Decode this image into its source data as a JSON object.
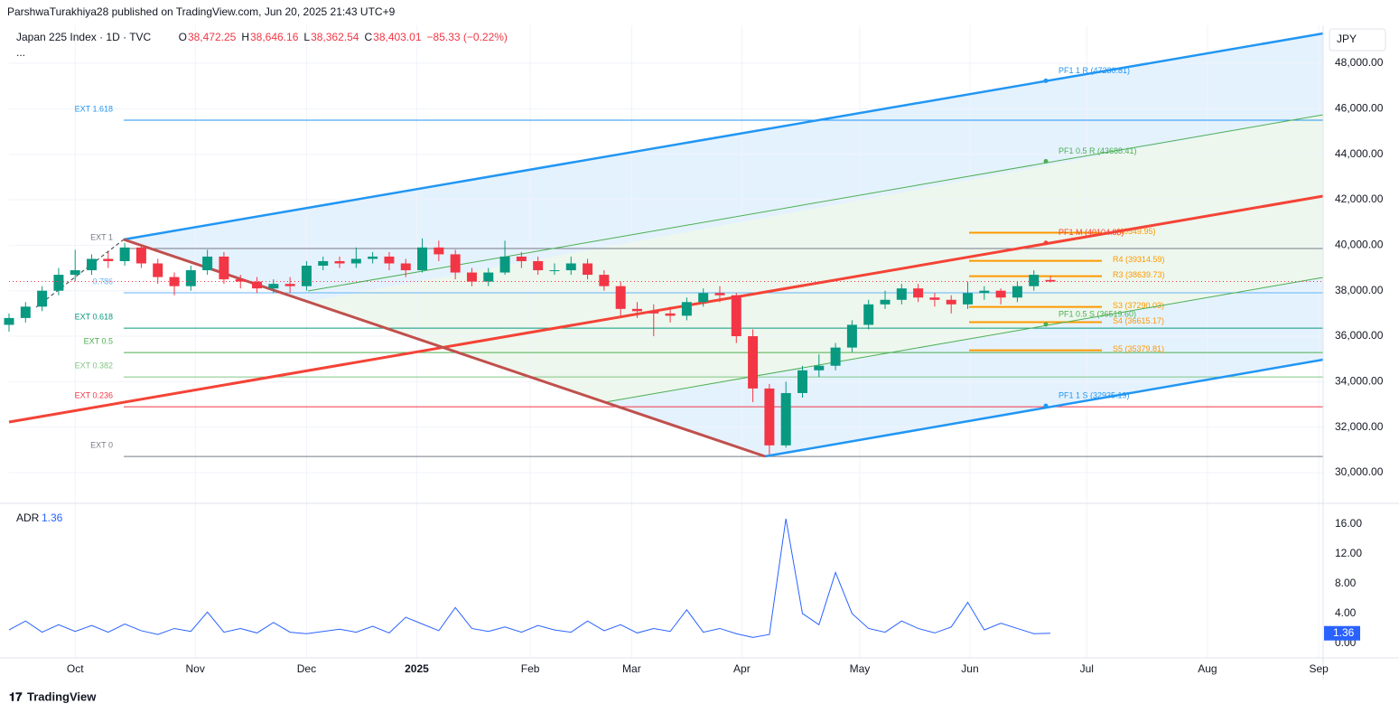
{
  "header": {
    "publisher": "ParshwaTurakhiya28 published on TradingView.com, Jun 20, 2025 21:43 UTC+9",
    "brand": "TradingView"
  },
  "chart_data": [
    {
      "type": "candlestick",
      "title": "Japan 225 Index · 1D · TVC",
      "menu": "...",
      "currency": "JPY",
      "ohlc": [
        {
          "key": "O",
          "value": "38,472.25"
        },
        {
          "key": "H",
          "value": "38,646.16"
        },
        {
          "key": "L",
          "value": "38,362.54"
        },
        {
          "key": "C",
          "value": "38,403.01"
        }
      ],
      "change": "−85.33 (−0.22%)",
      "x": [
        0,
        3,
        6,
        9,
        12,
        15,
        18,
        21,
        24,
        27,
        30,
        33,
        36,
        39,
        42,
        45,
        48,
        51,
        54,
        57,
        60,
        63,
        66,
        69,
        72,
        75,
        78,
        81,
        84,
        87,
        90,
        93,
        96,
        99,
        102,
        105,
        108,
        111,
        114,
        117,
        120,
        123,
        126,
        129,
        132,
        135,
        138,
        141,
        144,
        147,
        150,
        153,
        156,
        159,
        162,
        165,
        168,
        171,
        174,
        177,
        180,
        183,
        186,
        189
      ],
      "open": [
        36500,
        36800,
        37300,
        38000,
        38700,
        38900,
        39400,
        39300,
        39900,
        39200,
        38600,
        38200,
        38900,
        39500,
        38500,
        38400,
        38100,
        38300,
        38200,
        39100,
        39300,
        39200,
        39400,
        39500,
        39200,
        38900,
        39900,
        39600,
        38800,
        38400,
        38800,
        39500,
        39300,
        38900,
        38900,
        39200,
        38700,
        38200,
        37200,
        37100,
        37000,
        36900,
        37500,
        37900,
        37800,
        36000,
        33700,
        31200,
        33500,
        34500,
        34700,
        35500,
        36500,
        37400,
        37600,
        38100,
        37700,
        37600,
        37400,
        37900,
        38000,
        37700,
        38200,
        38472.25
      ],
      "high": [
        37000,
        37500,
        38200,
        39000,
        39800,
        39600,
        39700,
        40100,
        40000,
        39400,
        38800,
        39100,
        39800,
        39700,
        38700,
        38600,
        38500,
        38600,
        39300,
        39500,
        39500,
        39900,
        39700,
        39700,
        39400,
        40300,
        40200,
        39800,
        39000,
        39000,
        40200,
        39700,
        39500,
        39200,
        39500,
        39400,
        38900,
        38400,
        37500,
        37400,
        37300,
        37700,
        38100,
        38200,
        37900,
        36300,
        33900,
        34000,
        34700,
        35200,
        35700,
        36700,
        37600,
        38000,
        38300,
        38300,
        37900,
        37800,
        38400,
        38200,
        38100,
        38400,
        38900,
        38646.16
      ],
      "low": [
        36200,
        36600,
        37100,
        37800,
        38400,
        38700,
        39000,
        39100,
        39000,
        38300,
        37800,
        38000,
        38700,
        38300,
        38100,
        37900,
        37900,
        37900,
        38000,
        38900,
        39000,
        39000,
        39200,
        38900,
        38600,
        38800,
        39300,
        38500,
        38200,
        38200,
        38700,
        39000,
        38700,
        38700,
        38700,
        38500,
        38000,
        36900,
        36800,
        36000,
        36600,
        36700,
        37300,
        37500,
        35700,
        33100,
        30800,
        31100,
        33300,
        34200,
        34500,
        35300,
        36300,
        37200,
        37400,
        37500,
        37300,
        37000,
        37200,
        37600,
        37400,
        37500,
        38000,
        38362.54
      ],
      "close": [
        36800,
        37300,
        38000,
        38700,
        38900,
        39400,
        39300,
        39900,
        39200,
        38600,
        38200,
        38900,
        39500,
        38500,
        38400,
        38100,
        38300,
        38200,
        39100,
        39300,
        39200,
        39400,
        39500,
        39200,
        38900,
        39900,
        39600,
        38800,
        38400,
        38800,
        39500,
        39300,
        38900,
        38900,
        39200,
        38700,
        38200,
        37200,
        37100,
        37000,
        36900,
        37500,
        37900,
        37800,
        36000,
        33700,
        31200,
        33500,
        34500,
        34700,
        35500,
        36500,
        37400,
        37600,
        38100,
        37700,
        37600,
        37400,
        37900,
        38000,
        37700,
        38200,
        38700,
        38403.01
      ],
      "up_color": "#089981",
      "down_color": "#f23645",
      "xlim": [
        0,
        238.5
      ],
      "xticks": [
        {
          "value": 12,
          "label": "Oct"
        },
        {
          "value": 33.8,
          "label": "Nov"
        },
        {
          "value": 54,
          "label": "Dec"
        },
        {
          "value": 74,
          "label": "2025"
        },
        {
          "value": 94.6,
          "label": "Feb"
        },
        {
          "value": 113,
          "label": "Mar"
        },
        {
          "value": 133,
          "label": "Apr"
        },
        {
          "value": 154.4,
          "label": "May"
        },
        {
          "value": 174.4,
          "label": "Jun"
        },
        {
          "value": 195.6,
          "label": "Jul"
        },
        {
          "value": 217.5,
          "label": "Aug"
        },
        {
          "value": 237.7,
          "label": "Sep"
        }
      ],
      "ylim": [
        28730,
        49590
      ],
      "yticks": [
        {
          "value": 30000,
          "label": "30,000.00"
        },
        {
          "value": 32000,
          "label": "32,000.00"
        },
        {
          "value": 34000,
          "label": "34,000.00"
        },
        {
          "value": 36000,
          "label": "36,000.00"
        },
        {
          "value": 38000,
          "label": "38,000.00"
        },
        {
          "value": 40000,
          "label": "40,000.00"
        },
        {
          "value": 42000,
          "label": "42,000.00"
        },
        {
          "value": 44000,
          "label": "44,000.00"
        },
        {
          "value": 46000,
          "label": "46,000.00"
        },
        {
          "value": 48000,
          "label": "48,000.00"
        }
      ],
      "levels": [
        {
          "label": "EXT 1.618",
          "value": 45496,
          "color": "#2196f3"
        },
        {
          "label": "EXT 1",
          "value": 39853,
          "color": "#787b86"
        },
        {
          "label": "0.786",
          "value": 37906,
          "color": "#64b5f6"
        },
        {
          "label": "EXT 0.618",
          "value": 36356,
          "color": "#089981"
        },
        {
          "label": "EXT 0.5",
          "value": 35283,
          "color": "#4caf50"
        },
        {
          "label": "EXT 0.382",
          "value": 34210,
          "color": "#81c784"
        },
        {
          "label": "EXT 0.236",
          "value": 32899,
          "color": "#f23645"
        },
        {
          "label": "EXT 0",
          "value": 30713,
          "color": "#787b86"
        }
      ],
      "pivots": [
        {
          "label": "(40549.95)",
          "value": 40549.95
        },
        {
          "label": "R4 (39314.59)",
          "value": 39314.59
        },
        {
          "label": "R3 (38639.73)",
          "value": 38639.73
        },
        {
          "label": "S3 (37290.03)",
          "value": 37290.03
        },
        {
          "label": "S4 (36615.17)",
          "value": 36615.17
        },
        {
          "label": "S5 (35379.81)",
          "value": 35379.81
        }
      ],
      "pivot_color": "#ff9800",
      "pitchfork": [
        {
          "label": "PF1 1 R (47230.81)",
          "value": 47230.81,
          "color": "#2196f3"
        },
        {
          "label": "PF1 0.5 R (43688.41)",
          "value": 43688.41,
          "color": "#4caf50"
        },
        {
          "label": "PF1 M (40104.88)",
          "value": 40104.88,
          "color": "#f44336"
        },
        {
          "label": "PF1 0.5 S (36519.60)",
          "value": 36519.6,
          "color": "#4caf50"
        },
        {
          "label": "PF1 1 S (32935.19)",
          "value": 32935.19,
          "color": "#2196f3"
        }
      ]
    },
    {
      "type": "line",
      "title": "ADR",
      "color": "#2962ff",
      "x": [
        0,
        3,
        6,
        9,
        12,
        15,
        18,
        21,
        24,
        27,
        30,
        33,
        36,
        39,
        42,
        45,
        48,
        51,
        54,
        57,
        60,
        63,
        66,
        69,
        72,
        75,
        78,
        81,
        84,
        87,
        90,
        93,
        96,
        99,
        102,
        105,
        108,
        111,
        114,
        117,
        120,
        123,
        126,
        129,
        132,
        135,
        138,
        141,
        144,
        147,
        150,
        153,
        156,
        159,
        162,
        165,
        168,
        171,
        174,
        177,
        180,
        183,
        186,
        189
      ],
      "values": [
        1.8,
        3.0,
        1.5,
        2.5,
        1.6,
        2.4,
        1.5,
        2.6,
        1.7,
        1.2,
        2.0,
        1.6,
        4.2,
        1.5,
        2.0,
        1.4,
        2.8,
        1.5,
        1.3,
        1.6,
        1.9,
        1.5,
        2.3,
        1.4,
        3.5,
        2.6,
        1.7,
        4.8,
        2.0,
        1.6,
        2.2,
        1.5,
        2.4,
        1.8,
        1.5,
        3.0,
        1.7,
        2.5,
        1.4,
        2.0,
        1.6,
        4.5,
        1.5,
        2.0,
        1.3,
        0.8,
        1.2,
        16.7,
        4.0,
        2.5,
        9.5,
        4.0,
        2.0,
        1.5,
        3.0,
        2.0,
        1.4,
        2.2,
        5.5,
        1.8,
        2.7,
        2.0,
        1.3,
        1.36
      ],
      "xlim": [
        0,
        238.5
      ],
      "ylim": [
        -1.94,
        18.4
      ],
      "yticks": [
        {
          "value": 0,
          "label": "0.00"
        },
        {
          "value": 4,
          "label": "4.00"
        },
        {
          "value": 8,
          "label": "8.00"
        },
        {
          "value": 12,
          "label": "12.00"
        },
        {
          "value": 16,
          "label": "16.00"
        }
      ]
    }
  ]
}
